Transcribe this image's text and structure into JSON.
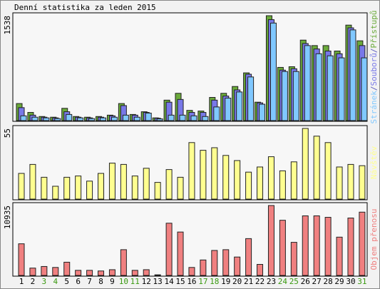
{
  "chart_data": [
    {
      "type": "bar",
      "title": "Denní statistika za leden 2015",
      "legend_separator": "/",
      "ylim": [
        0,
        1538
      ],
      "yticks": [
        1538
      ],
      "series": [
        {
          "name": "Přístupů",
          "color": "#6aaa3a",
          "values": [
            250,
            120,
            60,
            50,
            180,
            60,
            50,
            60,
            80,
            250,
            90,
            130,
            40,
            300,
            400,
            150,
            140,
            340,
            400,
            500,
            700,
            270,
            1538,
            780,
            790,
            1180,
            1100,
            1100,
            1020,
            1400,
            1170
          ]
        },
        {
          "name": "Souborů",
          "color": "#7878e8",
          "values": [
            190,
            80,
            50,
            40,
            130,
            50,
            40,
            50,
            70,
            220,
            80,
            120,
            35,
            270,
            310,
            120,
            120,
            300,
            360,
            450,
            680,
            260,
            1480,
            740,
            760,
            1130,
            1050,
            1020,
            980,
            1360,
            1100
          ]
        },
        {
          "name": "Stránek",
          "color": "#80c8ff",
          "values": [
            70,
            50,
            40,
            30,
            90,
            40,
            30,
            40,
            50,
            80,
            50,
            110,
            25,
            80,
            80,
            70,
            60,
            200,
            330,
            420,
            640,
            240,
            1430,
            720,
            720,
            1100,
            980,
            950,
            920,
            1330,
            920
          ]
        }
      ]
    },
    {
      "type": "bar",
      "ylim": [
        0,
        55
      ],
      "yticks": [
        55
      ],
      "series": [
        {
          "name": "Návštěv",
          "color": "#ffff90",
          "values": [
            20,
            27,
            17,
            10,
            17,
            18,
            14,
            20,
            28,
            27,
            18,
            24,
            13,
            23,
            17,
            44,
            38,
            40,
            34,
            30,
            21,
            25,
            33,
            22,
            29,
            55,
            49,
            44,
            25,
            27,
            26
          ]
        }
      ]
    },
    {
      "type": "bar",
      "ylim": [
        0,
        10935
      ],
      "yticks": [
        10935
      ],
      "categories": [
        "1",
        "2",
        "3",
        "4",
        "5",
        "6",
        "7",
        "8",
        "9",
        "10",
        "11",
        "12",
        "13",
        "14",
        "15",
        "16",
        "17",
        "18",
        "19",
        "20",
        "21",
        "22",
        "23",
        "24",
        "25",
        "26",
        "27",
        "28",
        "29",
        "30",
        "31"
      ],
      "category_colors": [
        "#000",
        "#000",
        "#3a9a10",
        "#3a9a10",
        "#000",
        "#000",
        "#000",
        "#000",
        "#000",
        "#3a9a10",
        "#3a9a10",
        "#000",
        "#000",
        "#000",
        "#000",
        "#000",
        "#3a9a10",
        "#3a9a10",
        "#000",
        "#000",
        "#000",
        "#000",
        "#000",
        "#3a9a10",
        "#3a9a10",
        "#000",
        "#000",
        "#000",
        "#000",
        "#000",
        "#3a9a10"
      ],
      "series": [
        {
          "name": "Objem přenosu",
          "color": "#f08080",
          "values": [
            4950,
            1150,
            1400,
            1250,
            2070,
            800,
            800,
            700,
            900,
            4030,
            800,
            900,
            100,
            8170,
            6790,
            1250,
            2420,
            3910,
            4030,
            2880,
            5760,
            1730,
            10935,
            8630,
            5180,
            9320,
            9320,
            9090,
            5990,
            8980,
            9900
          ]
        }
      ]
    }
  ]
}
